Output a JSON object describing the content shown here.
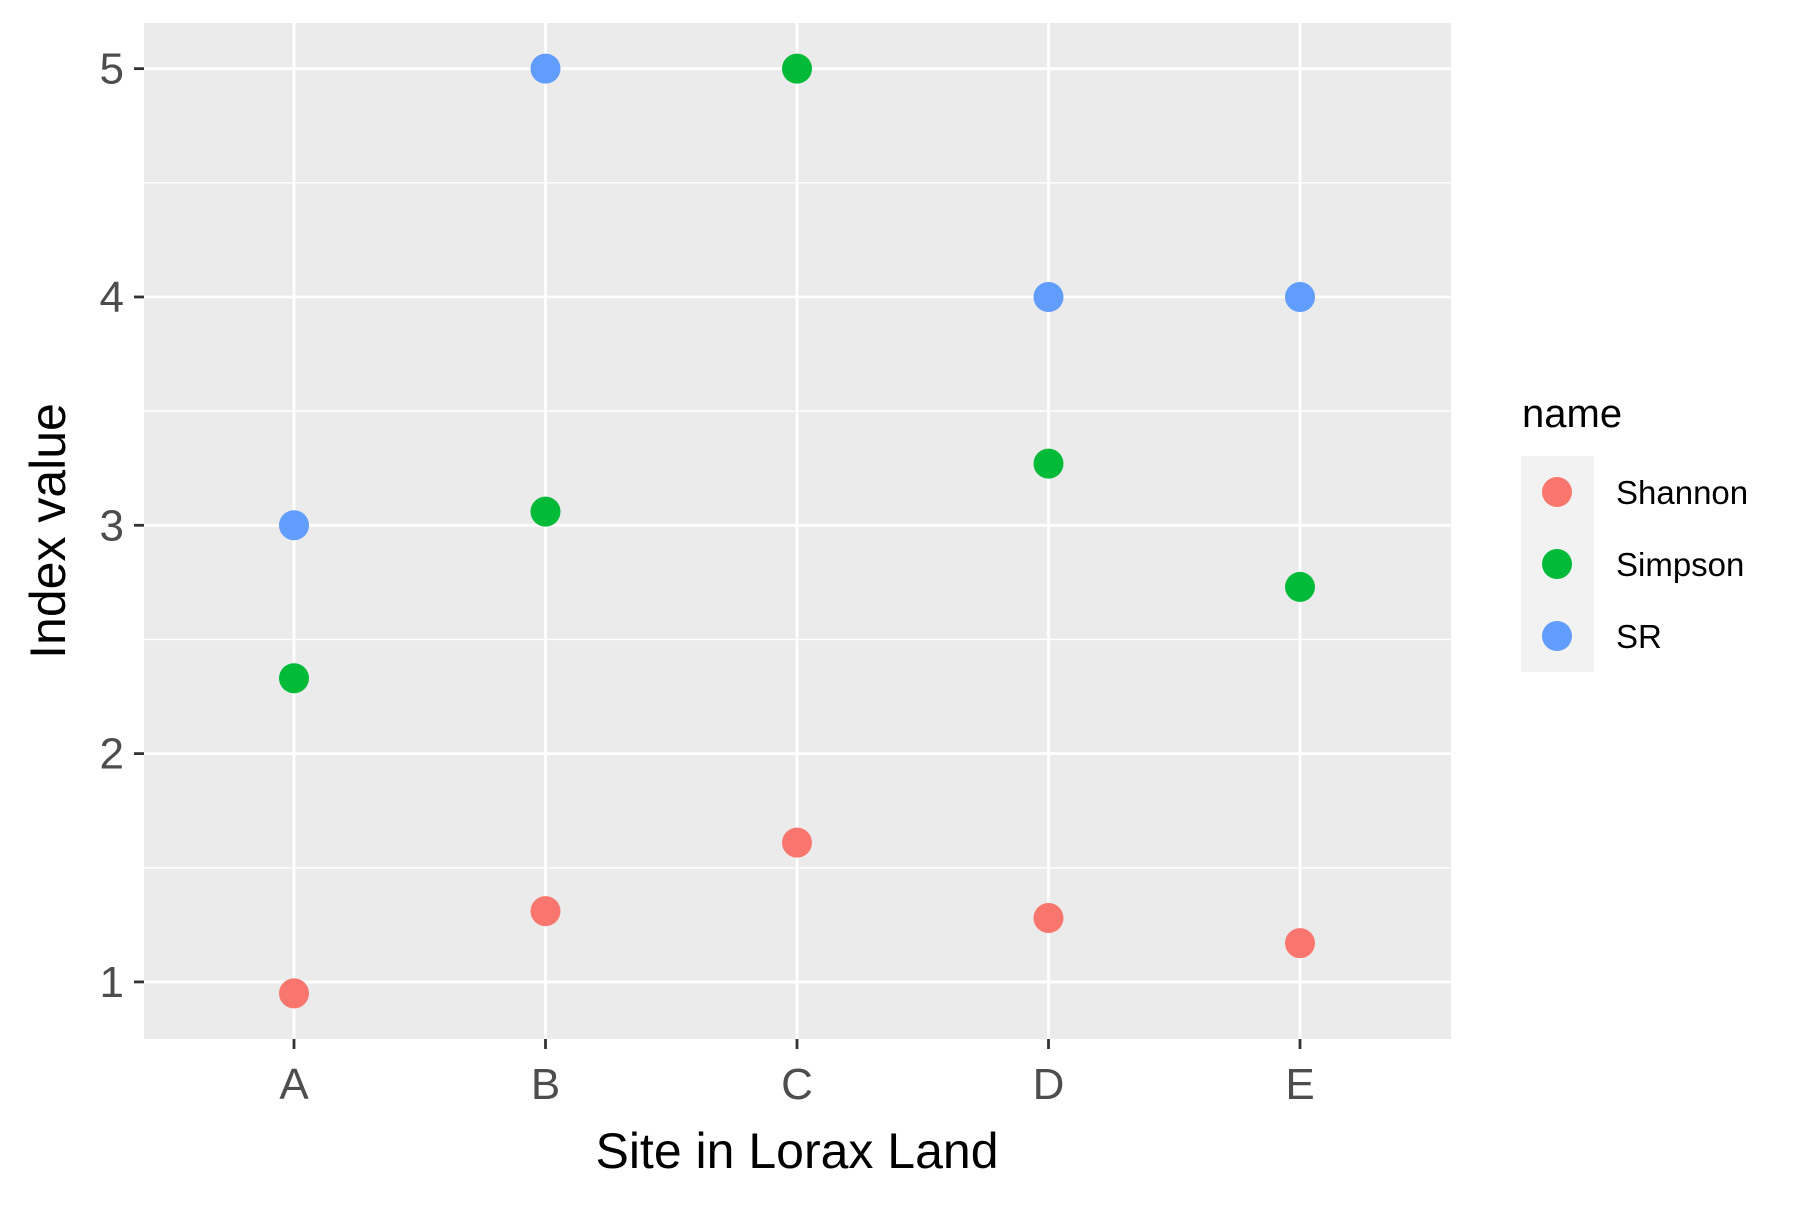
{
  "chart_data": {
    "type": "scatter",
    "xlabel": "Site in Lorax Land",
    "ylabel": "Index value",
    "categories": [
      "A",
      "B",
      "C",
      "D",
      "E"
    ],
    "y_ticks": [
      1,
      2,
      3,
      4,
      5
    ],
    "ylim": [
      0.75,
      5.2
    ],
    "grid": true,
    "legend": {
      "title": "name",
      "placement": "right"
    },
    "series": [
      {
        "name": "Shannon",
        "color": "#F8766D",
        "values": [
          0.95,
          1.31,
          1.61,
          1.28,
          1.17
        ]
      },
      {
        "name": "Simpson",
        "color": "#00BA38",
        "values": [
          2.33,
          3.06,
          5.0,
          3.27,
          2.73
        ]
      },
      {
        "name": "SR",
        "color": "#619CFF",
        "values": [
          3,
          5,
          null,
          4,
          4
        ]
      }
    ]
  }
}
